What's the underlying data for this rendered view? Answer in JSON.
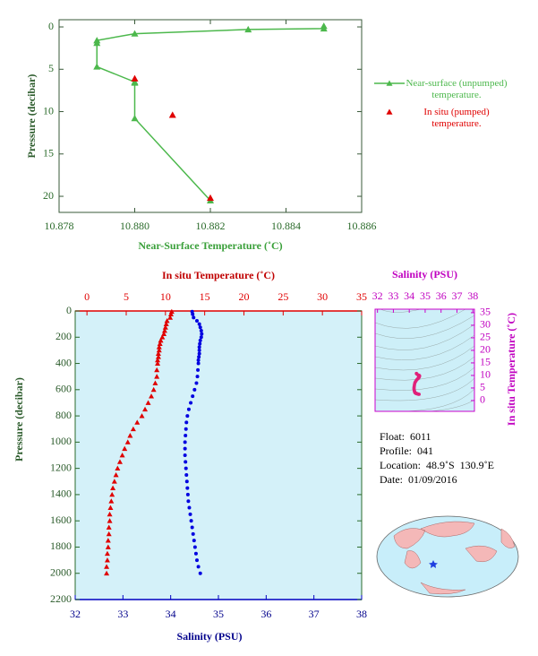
{
  "chart_data": [
    {
      "type": "scatter",
      "x_label": "Near-Surface Temperature (˚C)",
      "y_label": "Pressure (decibar)",
      "xlim": [
        10.878,
        10.886
      ],
      "xticks": [
        10.878,
        {
          "value": 10.88,
          "label": "10.880"
        },
        10.882,
        10.884,
        10.886
      ],
      "ylim": [
        -0.85,
        21.9
      ],
      "yticks": [
        0,
        5,
        10,
        15,
        20
      ],
      "y_inverted": true,
      "legend": "right",
      "series": [
        {
          "name": "Near-surface (unpumped) temperature.",
          "color": "#4cb84c",
          "marker": "triangle",
          "line": true,
          "x": [
            10.885,
            10.885,
            10.883,
            10.88,
            10.879,
            10.879,
            10.879,
            10.88,
            10.88,
            10.88,
            10.882
          ],
          "y": [
            -0.1,
            0.2,
            0.3,
            0.8,
            1.6,
            1.9,
            4.7,
            6.5,
            6.6,
            10.8,
            20.5
          ]
        },
        {
          "name": "In situ (pumped) temperature.",
          "color": "#e00000",
          "marker": "triangle",
          "line": false,
          "x": [
            10.88,
            10.881,
            10.882
          ],
          "y": [
            6.1,
            10.4,
            20.2
          ]
        }
      ]
    },
    {
      "type": "profile",
      "y_label": "Pressure (decibar)",
      "ylim": [
        0,
        2200
      ],
      "yticks": [
        0,
        200,
        400,
        600,
        800,
        1000,
        1200,
        1400,
        1600,
        1800,
        2000,
        2200
      ],
      "y_inverted": true,
      "xlim": [
        32,
        38
      ],
      "xticks": [
        32,
        33,
        34,
        35,
        36,
        37,
        38
      ],
      "x2lim": [
        -1.5,
        35
      ],
      "x2ticks": [
        0,
        5,
        10,
        15,
        20,
        25,
        30,
        35
      ],
      "pressure": [
        5,
        25,
        50,
        75,
        100,
        125,
        150,
        175,
        200,
        225,
        250,
        275,
        300,
        325,
        350,
        375,
        400,
        450,
        500,
        550,
        600,
        650,
        700,
        750,
        800,
        850,
        900,
        950,
        1000,
        1050,
        1100,
        1150,
        1200,
        1250,
        1300,
        1350,
        1400,
        1450,
        1500,
        1550,
        1600,
        1650,
        1700,
        1750,
        1800,
        1850,
        1900,
        1950,
        2000
      ],
      "series": [
        {
          "name": "In situ Temperature (˚C)",
          "color": "#e00000",
          "marker": "triangle",
          "axis": "x2",
          "values": [
            10.8,
            10.7,
            10.6,
            10.2,
            10.1,
            10.0,
            9.9,
            9.8,
            9.6,
            9.4,
            9.3,
            9.2,
            9.2,
            9.1,
            9.1,
            9.0,
            9.0,
            8.9,
            8.9,
            8.7,
            8.5,
            8.2,
            7.8,
            7.4,
            7.0,
            6.4,
            5.9,
            5.5,
            5.2,
            4.8,
            4.5,
            4.2,
            3.9,
            3.7,
            3.5,
            3.3,
            3.2,
            3.1,
            3.0,
            2.9,
            2.9,
            2.8,
            2.8,
            2.7,
            2.7,
            2.6,
            2.6,
            2.5,
            2.5
          ]
        },
        {
          "name": "Salinity (PSU)",
          "color": "#0000e0",
          "marker": "circle",
          "axis": "x",
          "values": [
            34.45,
            34.46,
            34.48,
            34.55,
            34.6,
            34.62,
            34.64,
            34.65,
            34.64,
            34.62,
            34.61,
            34.6,
            34.6,
            34.6,
            34.59,
            34.58,
            34.58,
            34.57,
            34.56,
            34.54,
            34.5,
            34.46,
            34.42,
            34.38,
            34.35,
            34.33,
            34.32,
            34.31,
            34.3,
            34.3,
            34.3,
            34.31,
            34.32,
            34.33,
            34.34,
            34.35,
            34.36,
            34.37,
            34.39,
            34.41,
            34.43,
            34.45,
            34.47,
            34.49,
            34.51,
            34.53,
            34.55,
            34.58,
            34.62
          ]
        }
      ]
    },
    {
      "type": "ts",
      "x_label": "Salinity (PSU)",
      "y_label": "In situ Temperature (˚C)",
      "color": "#e0207a",
      "xlim": [
        31.85,
        38.1
      ],
      "xticks": [
        32,
        33,
        34,
        35,
        36,
        37,
        38
      ],
      "ylim": [
        -4.3,
        36.4
      ],
      "yticks": [
        0,
        5,
        10,
        15,
        20,
        25,
        30,
        35
      ]
    }
  ],
  "info": [
    "Float:  6011",
    "Profile:  041",
    "Location:  48.9˚S  130.9˚E",
    "Date:  01/09/2016"
  ]
}
